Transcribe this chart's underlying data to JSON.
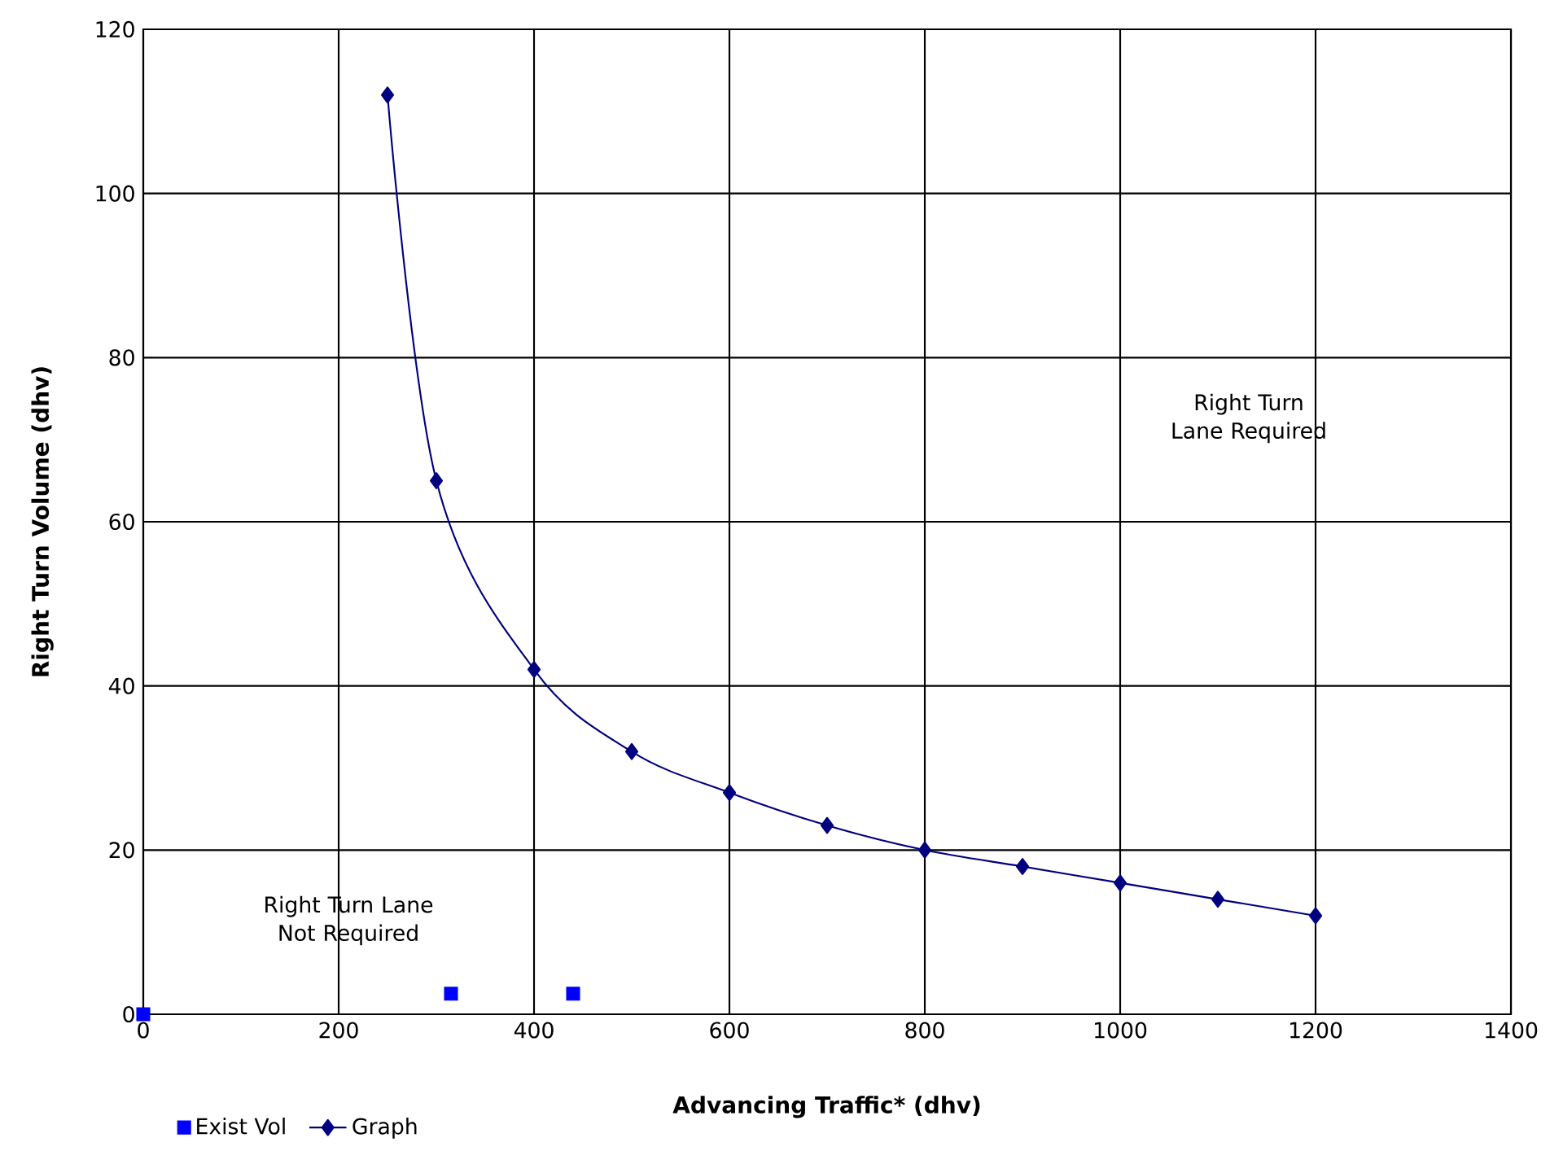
{
  "chart_data": {
    "type": "line",
    "xlabel": "Advancing Traffic* (dhv)",
    "ylabel": "Right Turn Volume (dhv)",
    "xlim": [
      0,
      1400
    ],
    "xticks": [
      0,
      200,
      400,
      600,
      800,
      1000,
      1200,
      1400
    ],
    "ylim": [
      0,
      120
    ],
    "yticks": [
      0,
      20,
      40,
      60,
      80,
      100,
      120
    ],
    "grid": true,
    "legend": "bottom left",
    "annotations": [
      "Right Turn Lane Not Required",
      "Right Turn Lane Required"
    ],
    "series": [
      {
        "name": "Exist Vol",
        "type": "scatter",
        "marker": "square",
        "color": "#0000ff",
        "x": [
          0,
          315,
          440
        ],
        "values": [
          0,
          2.5,
          2.5
        ]
      },
      {
        "name": "Graph",
        "marker": "diamond",
        "color": "#000080",
        "x": [
          250,
          300,
          400,
          500,
          600,
          700,
          800,
          900,
          1000,
          1100,
          1200
        ],
        "values": [
          112,
          65,
          42,
          32,
          27,
          23,
          20,
          18,
          16,
          14,
          12
        ]
      }
    ]
  }
}
